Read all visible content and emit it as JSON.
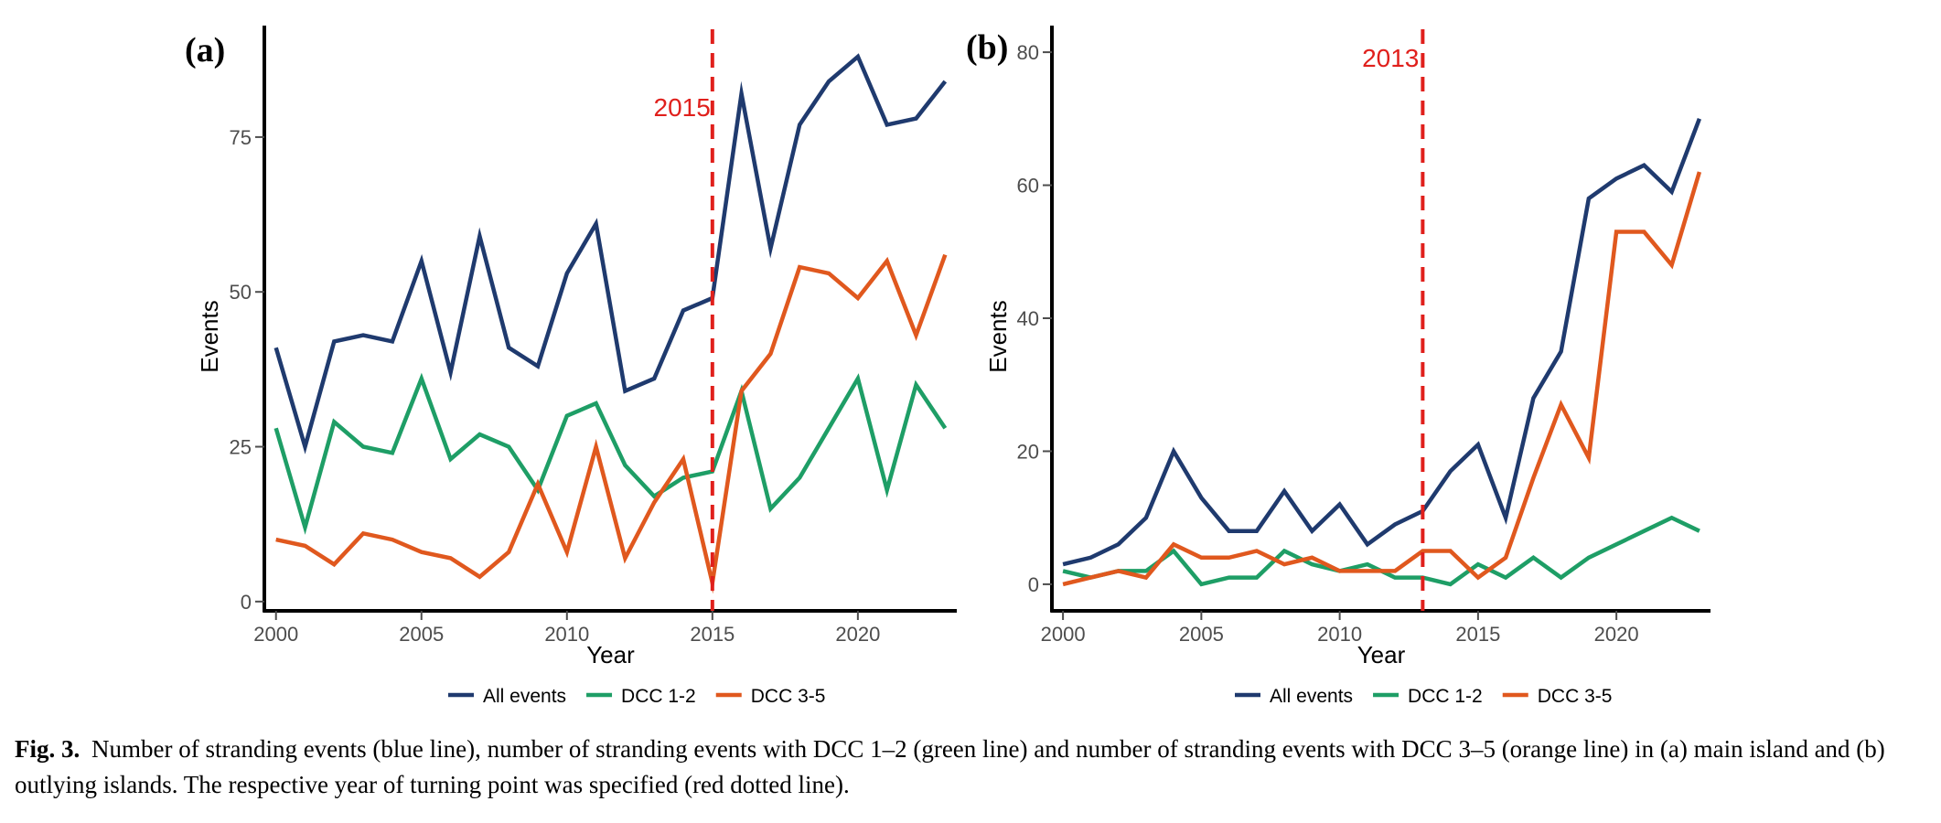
{
  "colors": {
    "all": "#1f3a6e",
    "dcc12": "#1e9e66",
    "dcc35": "#e0581e",
    "turning": "#e0201c",
    "axis": "#000000",
    "tick_text": "#4d4d4d"
  },
  "chart_data": [
    {
      "type": "line",
      "panel": "(a)",
      "xlabel": "Year",
      "ylabel": "Events",
      "xlim": [
        1999.6,
        2023.4
      ],
      "ylim": [
        -1.5,
        93
      ],
      "xticks": [
        2000,
        2005,
        2010,
        2015,
        2020
      ],
      "yticks": [
        0,
        25,
        50,
        75
      ],
      "turning_point": {
        "year": 2015,
        "label": "2015"
      },
      "legend": [
        "All events",
        "DCC 1-2",
        "DCC 3-5"
      ],
      "legend_position": "bottom",
      "grid": false,
      "x": [
        2000,
        2001,
        2002,
        2003,
        2004,
        2005,
        2006,
        2007,
        2008,
        2009,
        2010,
        2011,
        2012,
        2013,
        2014,
        2015,
        2016,
        2017,
        2018,
        2019,
        2020,
        2021,
        2022,
        2023
      ],
      "series": [
        {
          "name": "All events",
          "values": [
            41,
            25,
            42,
            43,
            42,
            55,
            37,
            59,
            41,
            38,
            53,
            61,
            34,
            36,
            47,
            49,
            82,
            57,
            77,
            84,
            88,
            77,
            78,
            84
          ]
        },
        {
          "name": "DCC 1-2",
          "values": [
            28,
            12,
            29,
            25,
            24,
            36,
            23,
            27,
            25,
            18,
            30,
            32,
            22,
            17,
            20,
            21,
            34,
            15,
            20,
            28,
            36,
            18,
            35,
            28
          ]
        },
        {
          "name": "DCC 3-5",
          "values": [
            10,
            9,
            6,
            11,
            10,
            8,
            7,
            4,
            8,
            19,
            8,
            25,
            7,
            16,
            23,
            3,
            34,
            40,
            54,
            53,
            49,
            55,
            43,
            56
          ]
        }
      ]
    },
    {
      "type": "line",
      "panel": "(b)",
      "xlabel": "Year",
      "ylabel": "Events",
      "xlim": [
        1999.6,
        2023.4
      ],
      "ylim": [
        -4,
        84
      ],
      "xticks": [
        2000,
        2005,
        2010,
        2015,
        2020
      ],
      "yticks": [
        0,
        20,
        40,
        60,
        80
      ],
      "turning_point": {
        "year": 2013,
        "label": "2013"
      },
      "legend": [
        "All events",
        "DCC 1-2",
        "DCC 3-5"
      ],
      "legend_position": "bottom",
      "grid": false,
      "x": [
        2000,
        2001,
        2002,
        2003,
        2004,
        2005,
        2006,
        2007,
        2008,
        2009,
        2010,
        2011,
        2012,
        2013,
        2014,
        2015,
        2016,
        2017,
        2018,
        2019,
        2020,
        2021,
        2022,
        2023
      ],
      "series": [
        {
          "name": "All events",
          "values": [
            3,
            4,
            6,
            10,
            20,
            13,
            8,
            8,
            14,
            8,
            12,
            6,
            9,
            11,
            17,
            21,
            10,
            28,
            35,
            58,
            61,
            63,
            59,
            70
          ]
        },
        {
          "name": "DCC 1-2",
          "values": [
            2,
            1,
            2,
            2,
            5,
            0,
            1,
            1,
            5,
            3,
            2,
            3,
            1,
            1,
            0,
            3,
            1,
            4,
            1,
            4,
            6,
            8,
            10,
            8
          ]
        },
        {
          "name": "DCC 3-5",
          "values": [
            0,
            1,
            2,
            1,
            6,
            4,
            4,
            5,
            3,
            4,
            2,
            2,
            2,
            5,
            5,
            1,
            4,
            16,
            27,
            19,
            53,
            53,
            48,
            62
          ]
        }
      ]
    }
  ],
  "caption": {
    "label": "Fig. 3.",
    "text": "Number of stranding events (blue line), number of stranding events with DCC 1–2 (green line) and number of stranding events with DCC 3–5 (orange line) in (a) main island and (b) outlying islands. The respective year of turning point was specified (red dotted line)."
  }
}
